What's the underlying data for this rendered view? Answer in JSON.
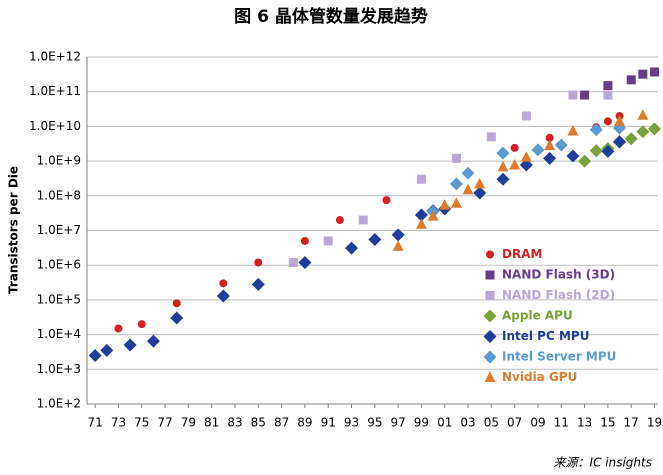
{
  "chart_data": {
    "type": "scatter",
    "title": "图 6 晶体管数量发展趋势",
    "ylabel": "Transistors per Die",
    "source": "来源：IC insights",
    "yscale": "log",
    "grid": true,
    "legend_loc": "lower right",
    "xlim": [
      1970.3,
      2019.3
    ],
    "xticks": [
      {
        "value": 1971,
        "label": "71"
      },
      {
        "value": 1973,
        "label": "73"
      },
      {
        "value": 1975,
        "label": "75"
      },
      {
        "value": 1977,
        "label": "77"
      },
      {
        "value": 1979,
        "label": "79"
      },
      {
        "value": 1981,
        "label": "81"
      },
      {
        "value": 1983,
        "label": "83"
      },
      {
        "value": 1985,
        "label": "85"
      },
      {
        "value": 1987,
        "label": "87"
      },
      {
        "value": 1989,
        "label": "89"
      },
      {
        "value": 1991,
        "label": "91"
      },
      {
        "value": 1993,
        "label": "93"
      },
      {
        "value": 1995,
        "label": "95"
      },
      {
        "value": 1997,
        "label": "97"
      },
      {
        "value": 1999,
        "label": "99"
      },
      {
        "value": 2001,
        "label": "01"
      },
      {
        "value": 2003,
        "label": "03"
      },
      {
        "value": 2005,
        "label": "05"
      },
      {
        "value": 2007,
        "label": "07"
      },
      {
        "value": 2009,
        "label": "09"
      },
      {
        "value": 2011,
        "label": "11"
      },
      {
        "value": 2013,
        "label": "13"
      },
      {
        "value": 2015,
        "label": "15"
      },
      {
        "value": 2017,
        "label": "17"
      },
      {
        "value": 2019,
        "label": "19"
      }
    ],
    "ylim": [
      100,
      1000000000000
    ],
    "yticks": [
      {
        "value": 100,
        "label": "1.0E+2"
      },
      {
        "value": 1000,
        "label": "1.0E+3"
      },
      {
        "value": 10000,
        "label": "1.0E+4"
      },
      {
        "value": 100000,
        "label": "1.0E+5"
      },
      {
        "value": 1000000,
        "label": "1.0E+6"
      },
      {
        "value": 10000000,
        "label": "1.0E+7"
      },
      {
        "value": 100000000,
        "label": "1.0E+8"
      },
      {
        "value": 1000000000,
        "label": "1.0E+9"
      },
      {
        "value": 10000000000,
        "label": "1.0E+10"
      },
      {
        "value": 100000000000,
        "label": "1.0E+11"
      },
      {
        "value": 1000000000000,
        "label": "1.0E+12"
      }
    ],
    "series": [
      {
        "name": "DRAM",
        "color": "#d42020",
        "marker": "circle",
        "x": [
          1973,
          1975,
          1978,
          1982,
          1985,
          1989,
          1992,
          1996,
          1999,
          2002,
          2007,
          2010,
          2014,
          2015,
          2016
        ],
        "values": [
          15000,
          20000,
          80000,
          300000,
          1200000,
          5000000,
          20000000,
          75000000,
          300000000,
          1200000000,
          2400000000,
          4700000000,
          9500000000,
          14000000000,
          20000000000
        ]
      },
      {
        "name": "NAND Flash (3D)",
        "color": "#6a3d8a",
        "marker": "square",
        "x": [
          2013,
          2015,
          2017,
          2018,
          2019
        ],
        "values": [
          80000000000,
          150000000000,
          220000000000,
          320000000000,
          370000000000
        ]
      },
      {
        "name": "NAND Flash (2D)",
        "color": "#b9a7d6",
        "marker": "square",
        "x": [
          1988,
          1991,
          1994,
          1999,
          2002,
          2005,
          2008,
          2012,
          2015
        ],
        "values": [
          1200000,
          5000000,
          20000000,
          300000000,
          1200000000,
          5000000000,
          20000000000,
          80000000000,
          80000000000
        ]
      },
      {
        "name": "Apple APU",
        "color": "#78a33a",
        "marker": "diamond",
        "x": [
          2013,
          2014,
          2015,
          2016,
          2017,
          2018,
          2019
        ],
        "values": [
          1000000000,
          2000000000,
          2300000000,
          3500000000,
          4400000000,
          7000000000,
          8500000000
        ]
      },
      {
        "name": "Intel PC MPU",
        "color": "#1f3d99",
        "marker": "diamond",
        "x": [
          1971,
          1972,
          1974,
          1976,
          1978,
          1982,
          1985,
          1989,
          1993,
          1995,
          1997,
          1999,
          2000,
          2001,
          2004,
          2006,
          2008,
          2010,
          2012,
          2015,
          2016
        ],
        "values": [
          2500,
          3500,
          5000,
          6500,
          30000,
          130000,
          280000,
          1200000,
          3100000,
          5500000,
          7500000,
          28000000,
          37000000,
          42000000,
          120000000,
          300000000,
          770000000,
          1200000000,
          1400000000,
          1900000000,
          3600000000
        ]
      },
      {
        "name": "Intel Server MPU",
        "color": "#5b9bd5",
        "marker": "diamond",
        "x": [
          2000,
          2002,
          2003,
          2006,
          2009,
          2011,
          2014,
          2016
        ],
        "values": [
          35000000,
          220000000,
          450000000,
          1700000000,
          2100000000,
          2900000000,
          8000000000,
          9000000000
        ]
      },
      {
        "name": "Nvidia GPU",
        "color": "#e07a2c",
        "marker": "triangle",
        "x": [
          1997,
          1999,
          2000,
          2001,
          2002,
          2003,
          2004,
          2006,
          2007,
          2008,
          2010,
          2012,
          2016,
          2018
        ],
        "values": [
          3500000,
          15000000,
          26000000,
          54000000,
          61000000,
          150000000,
          220000000,
          680000000,
          770000000,
          1300000000,
          2800000000,
          7400000000,
          14000000000,
          21000000000
        ]
      }
    ]
  }
}
